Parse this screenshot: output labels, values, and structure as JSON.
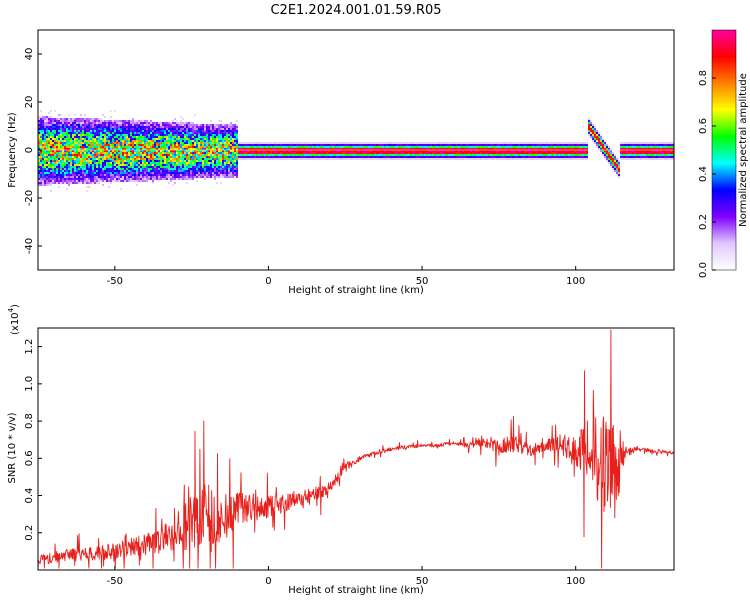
{
  "title": "C2E1.2024.001.01.59.R05",
  "colors": {
    "snr_line": "#e8201c",
    "axis": "#000000"
  },
  "chart_data": [
    {
      "type": "heatmap",
      "xlabel": "Height of straight line (km)",
      "ylabel": "Frequency (Hz)",
      "xlim": [
        -75,
        132
      ],
      "ylim": [
        -50,
        50
      ],
      "xticks": [
        -50,
        0,
        50,
        100
      ],
      "yticks": [
        -40,
        -20,
        0,
        20,
        40
      ],
      "xtick_labels": [
        "-50",
        "0",
        "50",
        "100"
      ],
      "ytick_labels": [
        "-40",
        "-20",
        "0",
        "20",
        "40"
      ],
      "colorbar": {
        "label": "Normalized spectral amplitude",
        "range": [
          0,
          1
        ],
        "ticks": [
          0.0,
          0.2,
          0.4,
          0.6,
          0.8
        ],
        "tick_labels": [
          "0.0",
          "0.2",
          "0.4",
          "0.6",
          "0.8"
        ],
        "colormap": [
          "#ffffff",
          "#e0c8ff",
          "#8000ff",
          "#0000ff",
          "#00ffff",
          "#00ff00",
          "#ffff00",
          "#ff8000",
          "#ff0000",
          "#ff00a0"
        ]
      },
      "band": {
        "center_frequency": 0,
        "notes": "Broad noisy band (±8 Hz) below about -10 km narrowing to a sharp strong line near 0 Hz above; excursion near 105-113 km from +10 Hz to -8 Hz"
      }
    },
    {
      "type": "line",
      "xlabel": "Height of straight line (km)",
      "ylabel": "SNR (10 * v/v)",
      "yscale_label": "(x10",
      "yscale_exponent": "4",
      "xlim": [
        -75,
        132
      ],
      "ylim": [
        0,
        1.3
      ],
      "xticks": [
        -50,
        0,
        50,
        100
      ],
      "yticks": [
        0.2,
        0.4,
        0.6,
        0.8,
        1.0,
        1.2
      ],
      "xtick_labels": [
        "-50",
        "0",
        "50",
        "100"
      ],
      "ytick_labels": [
        "0.2",
        "0.4",
        "0.6",
        "0.8",
        "1.0",
        "1.2"
      ],
      "series": [
        {
          "x": [
            -75,
            -65,
            -55,
            -45,
            -35,
            -30,
            -25,
            -20,
            -15,
            -10,
            -5,
            0,
            5,
            10,
            15,
            20,
            25,
            30,
            35,
            40,
            45,
            50,
            55,
            60,
            65,
            70,
            75,
            80,
            85,
            90,
            95,
            100,
            104,
            107,
            110,
            113,
            116,
            120,
            125,
            132
          ],
          "y": [
            0.05,
            0.08,
            0.09,
            0.12,
            0.16,
            0.2,
            0.26,
            0.3,
            0.28,
            0.33,
            0.33,
            0.34,
            0.36,
            0.38,
            0.4,
            0.45,
            0.55,
            0.6,
            0.63,
            0.65,
            0.66,
            0.67,
            0.67,
            0.68,
            0.67,
            0.68,
            0.66,
            0.68,
            0.64,
            0.67,
            0.68,
            0.64,
            0.65,
            0.6,
            0.58,
            0.55,
            0.63,
            0.65,
            0.64,
            0.63
          ],
          "noise_amplitude": [
            0.06,
            0.07,
            0.08,
            0.1,
            0.14,
            0.2,
            0.3,
            0.34,
            0.26,
            0.18,
            0.14,
            0.12,
            0.1,
            0.1,
            0.09,
            0.06,
            0.05,
            0.03,
            0.02,
            0.02,
            0.02,
            0.02,
            0.02,
            0.02,
            0.03,
            0.05,
            0.08,
            0.1,
            0.06,
            0.06,
            0.1,
            0.2,
            0.35,
            0.5,
            0.6,
            0.55,
            0.08,
            0.02,
            0.02,
            0.02
          ]
        }
      ]
    }
  ]
}
